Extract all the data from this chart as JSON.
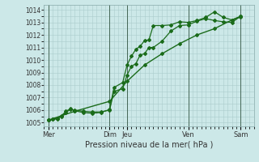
{
  "xlabel": "Pression niveau de la mer( hPa )",
  "bg_color": "#cce8e8",
  "grid_color": "#aacccc",
  "line_color": "#1a6b1a",
  "ylim": [
    1004.7,
    1014.4
  ],
  "yticks": [
    1005,
    1006,
    1007,
    1008,
    1009,
    1010,
    1011,
    1012,
    1013,
    1014
  ],
  "xlim": [
    0,
    24
  ],
  "day_ticks_x": [
    0.5,
    7.5,
    9.5,
    16.5,
    22.5
  ],
  "day_labels": [
    "Mer",
    "Dim",
    "Jeu",
    "Ven",
    "Sam"
  ],
  "vlines_x": [
    0.5,
    7.5,
    9.5,
    16.5,
    22.5
  ],
  "line1_x": [
    0.5,
    1.0,
    1.5,
    2.0,
    2.5,
    3.0,
    3.5,
    4.5,
    5.5,
    6.5,
    7.5,
    8.0,
    9.0,
    9.5,
    10.0,
    10.5,
    11.0,
    11.5,
    12.0,
    12.5,
    13.5,
    14.5,
    15.5,
    16.5,
    17.5,
    18.5,
    19.5,
    20.5,
    21.5,
    22.5
  ],
  "line1_y": [
    1005.2,
    1005.25,
    1005.3,
    1005.5,
    1005.8,
    1006.05,
    1006.0,
    1005.9,
    1005.85,
    1005.85,
    1006.0,
    1007.5,
    1007.7,
    1008.8,
    1009.5,
    1009.7,
    1010.4,
    1010.5,
    1011.0,
    1011.0,
    1011.5,
    1012.3,
    1012.75,
    1012.8,
    1013.1,
    1013.3,
    1013.15,
    1013.05,
    1013.0,
    1013.5
  ],
  "line2_x": [
    0.5,
    1.0,
    1.5,
    2.0,
    2.5,
    3.0,
    3.5,
    4.5,
    5.5,
    6.5,
    7.5,
    8.0,
    9.0,
    9.5,
    10.0,
    10.5,
    11.0,
    11.5,
    12.0,
    12.5,
    13.5,
    14.5,
    15.5,
    16.5,
    17.5,
    18.5,
    19.5,
    20.5,
    21.5,
    22.5
  ],
  "line2_y": [
    1005.2,
    1005.25,
    1005.35,
    1005.55,
    1005.9,
    1006.1,
    1005.95,
    1005.8,
    1005.75,
    1005.8,
    1006.05,
    1007.8,
    1008.2,
    1009.6,
    1010.3,
    1010.85,
    1011.1,
    1011.55,
    1011.6,
    1012.75,
    1012.75,
    1012.8,
    1013.05,
    1013.0,
    1013.15,
    1013.4,
    1013.85,
    1013.4,
    1013.2,
    1013.5
  ],
  "line3_x": [
    0.5,
    3.5,
    7.5,
    9.5,
    11.5,
    13.5,
    15.5,
    17.5,
    19.5,
    21.5,
    22.5
  ],
  "line3_y": [
    1005.2,
    1005.9,
    1006.7,
    1008.3,
    1009.6,
    1010.5,
    1011.3,
    1012.0,
    1012.5,
    1013.2,
    1013.45
  ]
}
